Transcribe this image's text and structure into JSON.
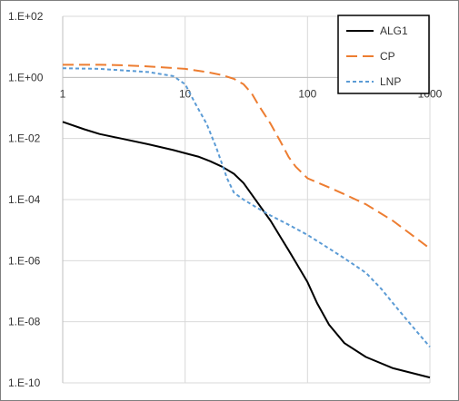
{
  "chart_data": {
    "type": "line",
    "title": "",
    "xlabel": "",
    "ylabel": "",
    "x_scale": "log",
    "y_scale": "log",
    "xlim": [
      1,
      1000
    ],
    "ylim": [
      1e-10,
      100
    ],
    "grid": true,
    "legend_position": "top-right",
    "x_ticks": [
      {
        "value": 1,
        "label": "1"
      },
      {
        "value": 10,
        "label": "10"
      },
      {
        "value": 100,
        "label": "100"
      },
      {
        "value": 1000,
        "label": "1000"
      }
    ],
    "y_ticks": [
      {
        "value": 100,
        "label": "1.E+02"
      },
      {
        "value": 1,
        "label": "1.E+00"
      },
      {
        "value": 0.01,
        "label": "1.E-02"
      },
      {
        "value": 0.0001,
        "label": "1.E-04"
      },
      {
        "value": 1e-06,
        "label": "1.E-06"
      },
      {
        "value": 1e-08,
        "label": "1.E-08"
      },
      {
        "value": 1e-10,
        "label": "1.E-10"
      }
    ],
    "series": [
      {
        "name": "ALG1",
        "color": "#000000",
        "dash": "solid",
        "x": [
          1,
          1.5,
          2,
          3,
          5,
          8,
          10,
          13,
          16,
          20,
          25,
          30,
          40,
          50,
          60,
          70,
          80,
          100,
          120,
          150,
          200,
          300,
          500,
          1000
        ],
        "y": [
          0.035,
          0.02,
          0.014,
          0.01,
          0.0065,
          0.0042,
          0.0033,
          0.0025,
          0.0018,
          0.0012,
          0.0007,
          0.00035,
          7e-05,
          2e-05,
          6e-06,
          2.2e-06,
          9e-07,
          2e-07,
          4e-08,
          8e-09,
          2e-09,
          7e-10,
          3e-10,
          1.5e-10
        ]
      },
      {
        "name": "CP",
        "color": "#ed7d31",
        "dash": "long-dash",
        "x": [
          1,
          2,
          3,
          5,
          10,
          15,
          20,
          25,
          30,
          35,
          40,
          50,
          60,
          70,
          80,
          100,
          150,
          200,
          300,
          500,
          1000
        ],
        "y": [
          2.6,
          2.6,
          2.5,
          2.3,
          1.9,
          1.5,
          1.2,
          0.9,
          0.6,
          0.3,
          0.12,
          0.03,
          0.008,
          0.0025,
          0.0012,
          0.0005,
          0.00025,
          0.00015,
          7e-05,
          2e-05,
          2.5e-06
        ]
      },
      {
        "name": "LNP",
        "color": "#5b9bd5",
        "dash": "short-dash",
        "x": [
          1,
          2,
          5,
          8,
          10,
          12,
          15,
          18,
          20,
          22,
          25,
          30,
          40,
          50,
          70,
          100,
          150,
          200,
          300,
          400,
          500,
          700,
          1000
        ],
        "y": [
          2.0,
          1.9,
          1.5,
          1.1,
          0.6,
          0.15,
          0.03,
          0.005,
          0.0015,
          0.0005,
          0.00017,
          0.0001,
          5e-05,
          3e-05,
          1.5e-05,
          7e-06,
          2.5e-06,
          1.2e-06,
          4e-07,
          1.2e-07,
          4e-08,
          8e-09,
          1.5e-09
        ]
      }
    ]
  }
}
